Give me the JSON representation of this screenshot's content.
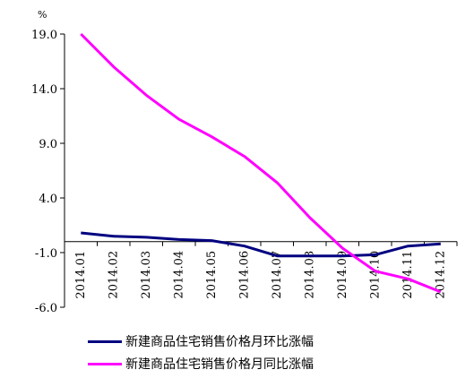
{
  "chart_data": {
    "type": "line",
    "unit_label": "%",
    "categories": [
      "2014.01",
      "2014.02",
      "2014.03",
      "2014.04",
      "2014.05",
      "2014.06",
      "2014.07",
      "2014.08",
      "2014.09",
      "2014.10",
      "2014.11",
      "2014.12"
    ],
    "yticks": [
      "19.0",
      "14.0",
      "9.0",
      "4.0",
      "-1.0",
      "-6.0"
    ],
    "ylim": [
      -6,
      21
    ],
    "series": [
      {
        "name": "新建商品住宅销售价格月环比涨幅",
        "color": "#000080",
        "values": [
          0.8,
          0.5,
          0.4,
          0.2,
          0.1,
          -0.4,
          -1.3,
          -1.3,
          -1.3,
          -1.2,
          -0.4,
          -0.2
        ]
      },
      {
        "name": "新建商品住宅销售价格月同比涨幅",
        "color": "#ff00ff",
        "values": [
          19.0,
          16.0,
          13.4,
          11.2,
          9.6,
          7.8,
          5.4,
          2.2,
          -0.6,
          -2.7,
          -3.4,
          -4.6
        ]
      }
    ]
  }
}
